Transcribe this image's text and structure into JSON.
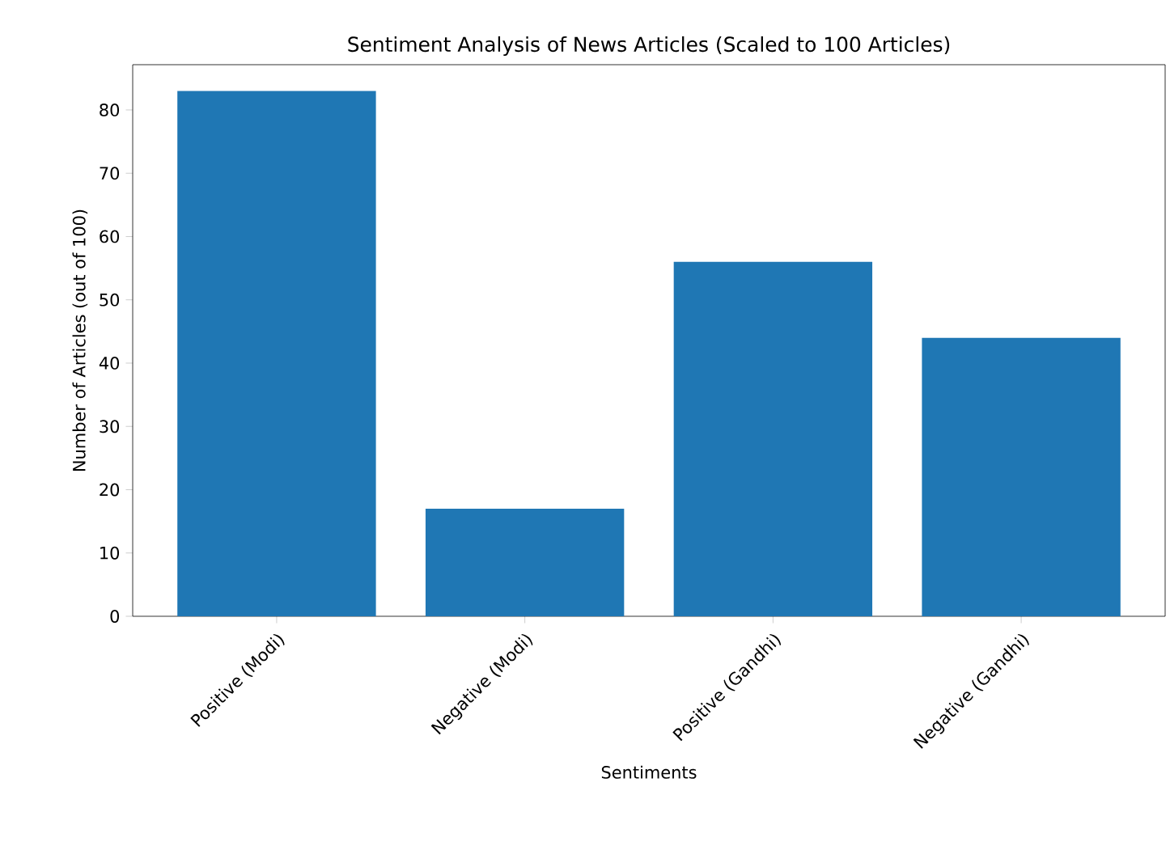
{
  "chart_data": {
    "type": "bar",
    "title": "Sentiment Analysis of News Articles (Scaled to 100 Articles)",
    "xlabel": "Sentiments",
    "ylabel": "Number of Articles (out of 100)",
    "categories": [
      "Positive (Modi)",
      "Negative (Modi)",
      "Positive (Gandhi)",
      "Negative (Gandhi)"
    ],
    "values": [
      83,
      17,
      56,
      44
    ],
    "color": "#1f77b4",
    "ylim": [
      0,
      87.15
    ],
    "yticks": [
      0,
      10,
      20,
      30,
      40,
      50,
      60,
      70,
      80
    ],
    "grid": false
  }
}
